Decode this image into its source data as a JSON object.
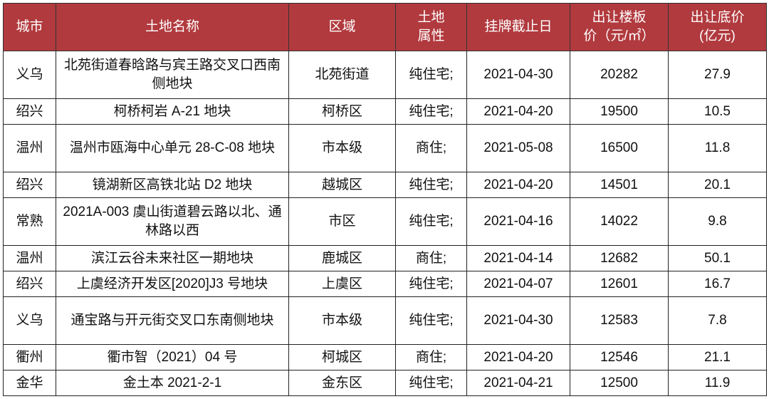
{
  "header_color": "#b13a3e",
  "columns": [
    "城市",
    "土地名称",
    "区域",
    "土地属性",
    "挂牌截止日",
    "出让楼板价（元/㎡）",
    "出让底价（亿元）"
  ],
  "column_lines": [
    [
      "城市"
    ],
    [
      "土地名称"
    ],
    [
      "区域"
    ],
    [
      "土地",
      "属性"
    ],
    [
      "挂牌截止日"
    ],
    [
      "出让楼板",
      "价（元/㎡）"
    ],
    [
      "出让底价",
      "(亿元)"
    ]
  ],
  "rows": [
    {
      "city": "义乌",
      "name": "北苑街道春晗路与宾王路交叉口西南侧地块",
      "district": "北苑街道",
      "type": "纯住宅;",
      "deadline": "2021-04-30",
      "floor_price": "20282",
      "base_price": "27.9"
    },
    {
      "city": "绍兴",
      "name": "柯桥柯岩 A-21 地块",
      "district": "柯桥区",
      "type": "纯住宅;",
      "deadline": "2021-04-20",
      "floor_price": "19500",
      "base_price": "10.5"
    },
    {
      "city": "温州",
      "name": "温州市瓯海中心单元 28-C-08 地块",
      "district": "市本级",
      "type": "商住;",
      "deadline": "2021-05-08",
      "floor_price": "16500",
      "base_price": "11.8"
    },
    {
      "city": "绍兴",
      "name": "镜湖新区高铁北站 D2 地块",
      "district": "越城区",
      "type": "纯住宅;",
      "deadline": "2021-04-20",
      "floor_price": "14501",
      "base_price": "20.1"
    },
    {
      "city": "常熟",
      "name": "2021A-003 虞山街道碧云路以北、通林路以西",
      "district": "市区",
      "type": "纯住宅;",
      "deadline": "2021-04-16",
      "floor_price": "14022",
      "base_price": "9.8"
    },
    {
      "city": "温州",
      "name": "滨江云谷未来社区一期地块",
      "district": "鹿城区",
      "type": "商住;",
      "deadline": "2021-04-14",
      "floor_price": "12682",
      "base_price": "50.1"
    },
    {
      "city": "绍兴",
      "name": "上虞经济开发区[2020]J3 号地块",
      "district": "上虞区",
      "type": "纯住宅;",
      "deadline": "2021-04-07",
      "floor_price": "12601",
      "base_price": "16.7"
    },
    {
      "city": "义乌",
      "name": "通宝路与开元街交叉口东南侧地块",
      "district": "市本级",
      "type": "纯住宅;",
      "deadline": "2021-04-30",
      "floor_price": "12583",
      "base_price": "7.8"
    },
    {
      "city": "衢州",
      "name": "衢市智（2021）04 号",
      "district": "柯城区",
      "type": "商住;",
      "deadline": "2021-04-20",
      "floor_price": "12546",
      "base_price": "21.1"
    },
    {
      "city": "金华",
      "name": "金土本 2021-2-1",
      "district": "金东区",
      "type": "纯住宅;",
      "deadline": "2021-04-21",
      "floor_price": "12500",
      "base_price": "11.9"
    }
  ]
}
